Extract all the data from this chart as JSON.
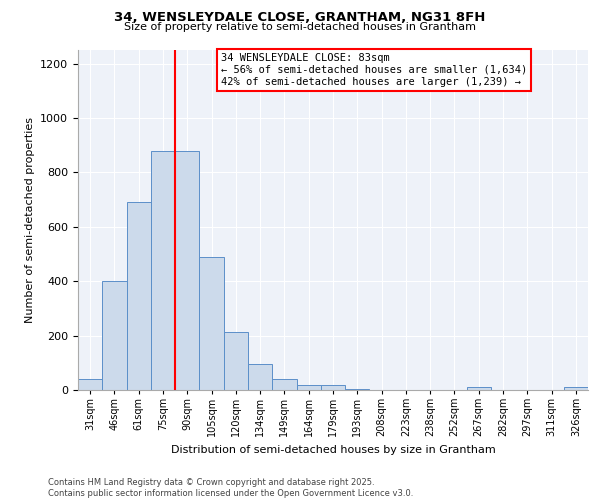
{
  "title1": "34, WENSLEYDALE CLOSE, GRANTHAM, NG31 8FH",
  "title2": "Size of property relative to semi-detached houses in Grantham",
  "xlabel": "Distribution of semi-detached houses by size in Grantham",
  "ylabel": "Number of semi-detached properties",
  "bar_labels": [
    "31sqm",
    "46sqm",
    "61sqm",
    "75sqm",
    "90sqm",
    "105sqm",
    "120sqm",
    "134sqm",
    "149sqm",
    "164sqm",
    "179sqm",
    "193sqm",
    "208sqm",
    "223sqm",
    "238sqm",
    "252sqm",
    "267sqm",
    "282sqm",
    "297sqm",
    "311sqm",
    "326sqm"
  ],
  "bar_values": [
    40,
    400,
    690,
    880,
    880,
    490,
    215,
    95,
    40,
    20,
    20,
    5,
    0,
    0,
    0,
    0,
    10,
    0,
    0,
    0,
    10
  ],
  "bar_color": "#ccdaeb",
  "bar_edge_color": "#5b8fc9",
  "annotation_title": "34 WENSLEYDALE CLOSE: 83sqm",
  "annotation_line1": "← 56% of semi-detached houses are smaller (1,634)",
  "annotation_line2": "42% of semi-detached houses are larger (1,239) →",
  "red_line_index": 4,
  "ylim": [
    0,
    1250
  ],
  "yticks": [
    0,
    200,
    400,
    600,
    800,
    1000,
    1200
  ],
  "background_color": "#eef2f9",
  "footer_line1": "Contains HM Land Registry data © Crown copyright and database right 2025.",
  "footer_line2": "Contains public sector information licensed under the Open Government Licence v3.0."
}
